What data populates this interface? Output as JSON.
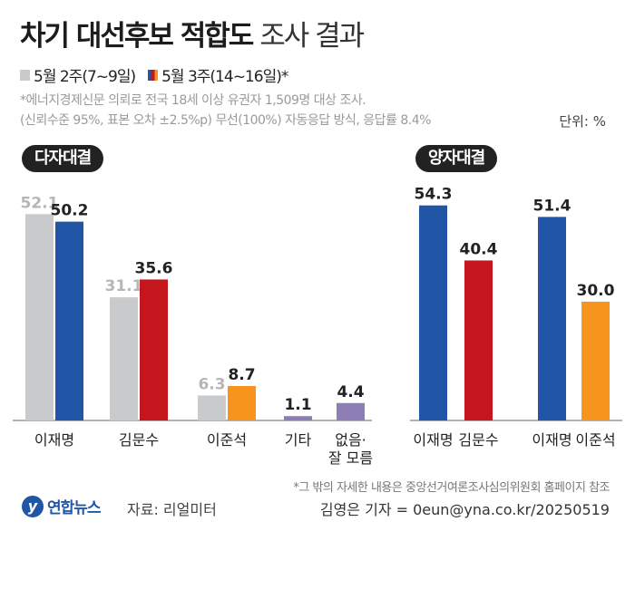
{
  "title": "차기 대선후보 적합도",
  "title_sub": "조사 결과",
  "legend": [
    {
      "label": "5월 2주(7~9일)",
      "color": "#c9cacc"
    },
    {
      "label": "5월 3주(14~16일)*",
      "color": "multi"
    }
  ],
  "notes": [
    "*에너지경제신문 의뢰로 전국 18세 이상 유권자 1,509명 대상 조사.",
    "(신뢰수준 95%, 표본 오차 ±2.5%p) 무선(100%) 자동응답 방식, 응답률 8.4%"
  ],
  "unit": "단위: %",
  "footnote": "*그 밖의 자세한 내용은 중앙선거여론조사심의위원회 홈페이지 참조",
  "source": "자료: 리얼미터",
  "logo": {
    "mark": "y",
    "name": "연합뉴스"
  },
  "byline": "김영은 기자 = 0eun@yna.co.kr/20250519",
  "colors": {
    "grey": "#c9cacc",
    "blue": "#2155a5",
    "red": "#c4161c",
    "orange": "#f7941e",
    "purple": "#8d7fb5"
  },
  "chart_data": [
    {
      "type": "bar",
      "title": "다자대결",
      "categories": [
        "이재명",
        "김문수",
        "이준석",
        "기타",
        "없음·\n잘 모름"
      ],
      "series": [
        {
          "name": "5월 2주(7~9일)",
          "values": [
            52.1,
            31.1,
            6.3,
            null,
            null
          ]
        },
        {
          "name": "5월 3주(14~16일)*",
          "values": [
            50.2,
            35.6,
            8.7,
            1.1,
            4.4
          ]
        }
      ],
      "bar_colors_current": [
        "#2155a5",
        "#c4161c",
        "#f7941e",
        "#8d7fb5",
        "#8d7fb5"
      ]
    },
    {
      "type": "bar",
      "title": "양자대결",
      "categories": [
        "이재명",
        "김문수",
        "이재명",
        "이준석"
      ],
      "values": [
        54.3,
        40.4,
        51.4,
        30.0
      ],
      "value_labels": [
        "54.3",
        "40.4",
        "51.4",
        "30.0"
      ],
      "bar_colors": [
        "#2155a5",
        "#c4161c",
        "#2155a5",
        "#f7941e"
      ]
    }
  ]
}
